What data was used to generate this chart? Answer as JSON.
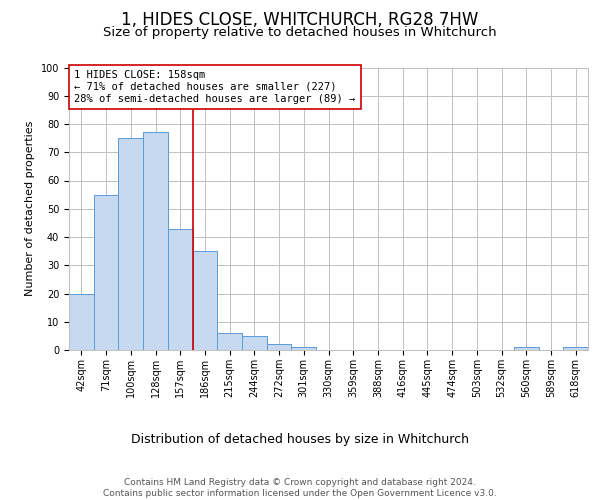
{
  "title": "1, HIDES CLOSE, WHITCHURCH, RG28 7HW",
  "subtitle": "Size of property relative to detached houses in Whitchurch",
  "xlabel": "Distribution of detached houses by size in Whitchurch",
  "ylabel": "Number of detached properties",
  "bin_labels": [
    "42sqm",
    "71sqm",
    "100sqm",
    "128sqm",
    "157sqm",
    "186sqm",
    "215sqm",
    "244sqm",
    "272sqm",
    "301sqm",
    "330sqm",
    "359sqm",
    "388sqm",
    "416sqm",
    "445sqm",
    "474sqm",
    "503sqm",
    "532sqm",
    "560sqm",
    "589sqm",
    "618sqm"
  ],
  "bar_heights": [
    20,
    55,
    75,
    77,
    43,
    35,
    6,
    5,
    2,
    1,
    0,
    0,
    0,
    0,
    0,
    0,
    0,
    0,
    1,
    0,
    1
  ],
  "bar_color": "#c6d9f0",
  "bar_edge_color": "#5b9bd5",
  "property_line_x": 4,
  "property_line_color": "#cc0000",
  "annotation_text": "1 HIDES CLOSE: 158sqm\n← 71% of detached houses are smaller (227)\n28% of semi-detached houses are larger (89) →",
  "annotation_box_color": "#ffffff",
  "annotation_box_edge_color": "#cc0000",
  "ylim": [
    0,
    100
  ],
  "yticks": [
    0,
    10,
    20,
    30,
    40,
    50,
    60,
    70,
    80,
    90,
    100
  ],
  "grid_color": "#c0c0c0",
  "footer_text": "Contains HM Land Registry data © Crown copyright and database right 2024.\nContains public sector information licensed under the Open Government Licence v3.0.",
  "title_fontsize": 12,
  "subtitle_fontsize": 9.5,
  "xlabel_fontsize": 9,
  "ylabel_fontsize": 8,
  "tick_fontsize": 7,
  "annotation_fontsize": 7.5,
  "footer_fontsize": 6.5
}
